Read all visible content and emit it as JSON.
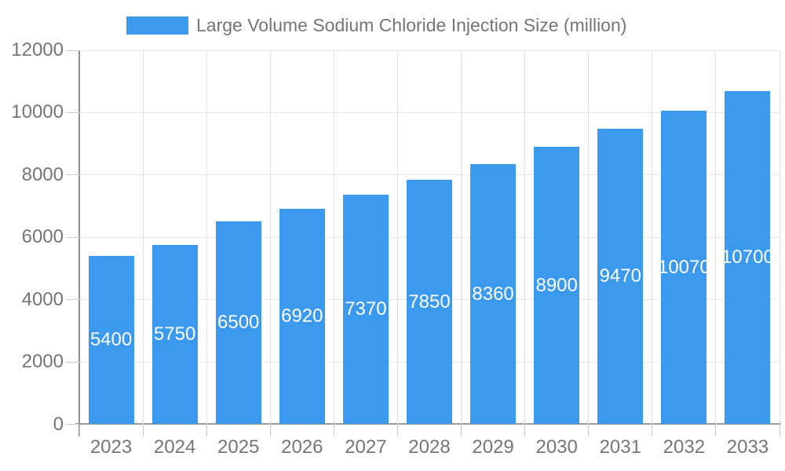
{
  "chart_data": {
    "type": "bar",
    "title": "Large Volume Sodium Chloride Injection Size (million)",
    "categories": [
      "2023",
      "2024",
      "2025",
      "2026",
      "2027",
      "2028",
      "2029",
      "2030",
      "2031",
      "2032",
      "2033"
    ],
    "values": [
      5400,
      5750,
      6500,
      6920,
      7370,
      7850,
      8360,
      8900,
      9470,
      10070,
      10700
    ],
    "xlabel": "",
    "ylabel": "",
    "ylim": [
      0,
      12000
    ],
    "yticks": [
      0,
      2000,
      4000,
      6000,
      8000,
      10000,
      12000
    ],
    "grid": true,
    "legend_position": "top-center",
    "value_labels": "inside-center-white",
    "bar_color": "#3b99ee",
    "axis_text_color": "#757575",
    "gridline_color": "#e6e6e6",
    "axis_line_color": "#9a9a9a",
    "value_label_color": "#ffffff"
  }
}
